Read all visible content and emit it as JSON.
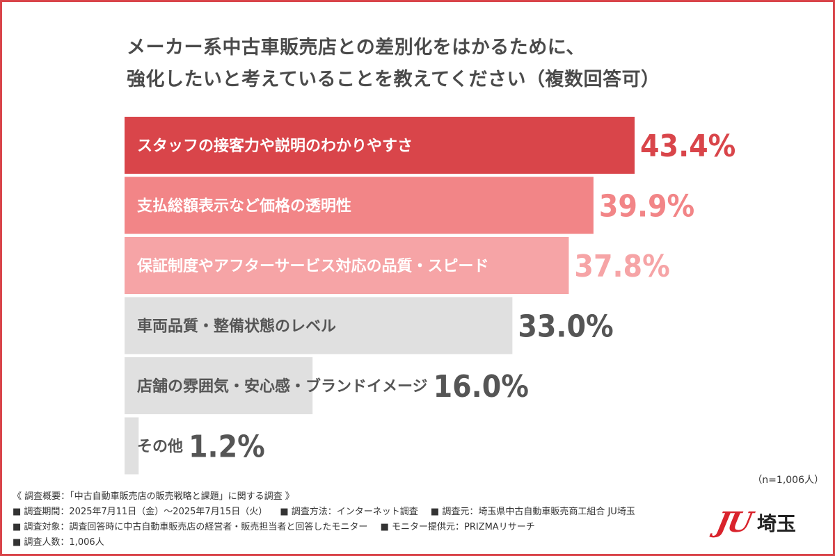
{
  "title": {
    "line1": "メーカー系中古車販売店との差別化をはかるために、",
    "line2": "強化したいと考えていることを教えてください（複数回答可）"
  },
  "chart_data": {
    "type": "bar",
    "orientation": "horizontal",
    "unit": "%",
    "categories": [
      "スタッフの接客力や説明のわかりやすさ",
      "支払総額表示など価格の透明性",
      "保証制度やアフターサービス対応の品質・スピード",
      "車両品質・整備状態のレベル",
      "店舗の雰囲気・安心感・ブランドイメージ",
      "その他"
    ],
    "values": [
      43.4,
      39.9,
      37.8,
      33.0,
      16.0,
      1.2
    ],
    "value_labels": [
      "43.4%",
      "39.9%",
      "37.8%",
      "33.0%",
      "16.0%",
      "1.2%"
    ],
    "bar_colors": [
      "#d9454a",
      "#f28587",
      "#f6a4a6",
      "#e0e0e0",
      "#e0e0e0",
      "#e0e0e0"
    ],
    "label_colors": [
      "#ffffff",
      "#ffffff",
      "#ffffff",
      "#555555",
      "#555555",
      "#555555"
    ],
    "value_colors": [
      "#d9454a",
      "#f28587",
      "#f6a4a6",
      "#555555",
      "#555555",
      "#555555"
    ]
  },
  "sample_size": "（n=1,006人）",
  "footer": {
    "survey_title": "《 調査概要：「中古自動車販売店の販売戦略と課題」に関する調査 》",
    "row1": [
      "■ 調査期間：2025年7月11日（金）〜2025年7月15日（火）",
      "■ 調査方法：インターネット調査",
      "■ 調査元：埼玉県中古自動車販売商工組合 JU埼玉"
    ],
    "row2": [
      "■ 調査対象：調査回答時に中古自動車販売店の経営者・販売担当者と回答したモニター",
      "■ モニター提供元：PRIZMAリサーチ"
    ],
    "row3": "■ 調査人数：1,006人"
  },
  "logo": {
    "mark": "JU",
    "text": "埼玉"
  },
  "colors": {
    "accent": "#d9454a",
    "frame": "#d9454a"
  }
}
